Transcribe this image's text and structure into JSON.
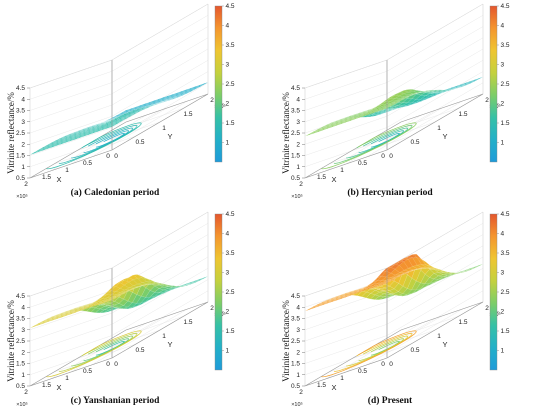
{
  "chart_data": [
    {
      "type": "surface3d",
      "caption": "(a) Caledonian period",
      "xlabel": "X",
      "ylabel": "Y",
      "zlabel": "Vitrinite reflectance/%",
      "x_ticks": [
        "0",
        "0.5",
        "1",
        "1.5",
        "2"
      ],
      "x_multiplier": "×10⁵",
      "y_ticks": [
        "0",
        "0.5",
        "1",
        "1.5",
        "2"
      ],
      "y_multiplier": "×10⁵",
      "z_ticks": [
        "0.5",
        "1",
        "1.5",
        "2",
        "2.5",
        "3",
        "3.5",
        "4",
        "4.5"
      ],
      "xlim": [
        0,
        200000
      ],
      "ylim": [
        0,
        200000
      ],
      "zlim": [
        0.5,
        4.5
      ],
      "colorbar": {
        "range": [
          0.5,
          4.5
        ],
        "ticks": [
          "1",
          "1.5",
          "2",
          "2.5",
          "3",
          "3.5",
          "4",
          "4.5"
        ]
      },
      "surface": {
        "z_range": [
          0.9,
          1.65
        ],
        "grid": "on"
      }
    },
    {
      "type": "surface3d",
      "caption": "(b) Hercynian period",
      "xlabel": "X",
      "ylabel": "Y",
      "zlabel": "Vitrinite reflectance/%",
      "x_ticks": [
        "0",
        "0.5",
        "1",
        "1.5",
        "2"
      ],
      "x_multiplier": "×10⁵",
      "y_ticks": [
        "0",
        "0.5",
        "1",
        "1.5",
        "2"
      ],
      "y_multiplier": "×10⁵",
      "z_ticks": [
        "0.5",
        "1",
        "1.5",
        "2",
        "2.5",
        "3",
        "3.5",
        "4",
        "4.5"
      ],
      "xlim": [
        0,
        200000
      ],
      "ylim": [
        0,
        200000
      ],
      "zlim": [
        0.5,
        4.5
      ],
      "colorbar": {
        "range": [
          0.5,
          4.5
        ],
        "ticks": [
          "1",
          "1.5",
          "2",
          "2.5",
          "3",
          "3.5",
          "4",
          "4.5"
        ]
      },
      "surface": {
        "z_range": [
          1.0,
          2.6
        ],
        "grid": "on"
      }
    },
    {
      "type": "surface3d",
      "caption": "(c) Yanshanian period",
      "xlabel": "X",
      "ylabel": "Y",
      "zlabel": "Vitrinite reflectance/%",
      "x_ticks": [
        "0",
        "0.5",
        "1",
        "1.5",
        "2"
      ],
      "x_multiplier": "×10⁵",
      "y_ticks": [
        "0",
        "0.5",
        "1",
        "1.5",
        "2"
      ],
      "y_multiplier": "×10⁵",
      "z_ticks": [
        "0.5",
        "1",
        "1.5",
        "2",
        "2.5",
        "3",
        "3.5",
        "4",
        "4.5"
      ],
      "xlim": [
        0,
        200000
      ],
      "ylim": [
        0,
        200000
      ],
      "zlim": [
        0.5,
        4.5
      ],
      "colorbar": {
        "range": [
          0.5,
          4.5
        ],
        "ticks": [
          "1",
          "1.5",
          "2",
          "2.5",
          "3",
          "3.5",
          "4",
          "4.5"
        ]
      },
      "surface": {
        "z_range": [
          1.3,
          3.4
        ],
        "grid": "on"
      }
    },
    {
      "type": "surface3d",
      "caption": "(d) Present",
      "xlabel": "X",
      "ylabel": "Y",
      "zlabel": "Vitrinite reflectance/%",
      "x_ticks": [
        "0",
        "0.5",
        "1",
        "1.5",
        "2"
      ],
      "x_multiplier": "×10⁵",
      "y_ticks": [
        "0",
        "0.5",
        "1",
        "1.5",
        "2"
      ],
      "y_multiplier": "×10⁵",
      "z_ticks": [
        "0.5",
        "1",
        "1.5",
        "2",
        "2.5",
        "3",
        "3.5",
        "4",
        "4.5"
      ],
      "xlim": [
        0,
        200000
      ],
      "ylim": [
        0,
        200000
      ],
      "zlim": [
        0.5,
        4.5
      ],
      "colorbar": {
        "range": [
          0.5,
          4.5
        ],
        "ticks": [
          "1",
          "1.5",
          "2",
          "2.5",
          "3",
          "3.5",
          "4",
          "4.5"
        ]
      },
      "surface": {
        "z_range": [
          1.8,
          4.2
        ],
        "grid": "on"
      }
    }
  ],
  "colors": {
    "colormap": [
      "#1f9bd9",
      "#23b0c8",
      "#36c1a6",
      "#7ccd68",
      "#c4d13e",
      "#efc531",
      "#f4962f",
      "#e4572e"
    ],
    "box": "#c9c9c9",
    "axis": "#555555"
  }
}
